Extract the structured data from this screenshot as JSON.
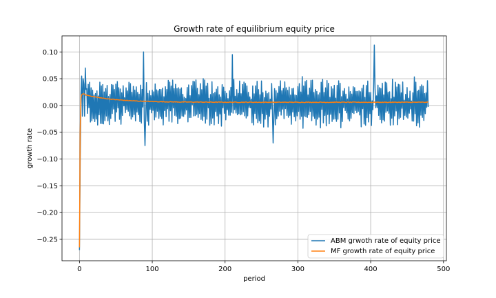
{
  "chart_data": {
    "type": "line",
    "title": "Growth rate of equilibrium equity price",
    "xlabel": "period",
    "ylabel": "growth rate",
    "xlim": [
      -24,
      504
    ],
    "ylim": [
      -0.29,
      0.13
    ],
    "xticks": [
      0,
      100,
      200,
      300,
      400,
      500
    ],
    "yticks": [
      -0.25,
      -0.2,
      -0.15,
      -0.1,
      -0.05,
      0.0,
      0.05,
      0.1
    ],
    "ytick_labels": [
      "−0.25",
      "−0.20",
      "−0.15",
      "−0.10",
      "−0.05",
      "0.00",
      "0.05",
      "0.10"
    ],
    "grid": true,
    "legend_position": "lower-right",
    "series": [
      {
        "name": "ABM grwoth rate of equity price",
        "color": "#1f77b4",
        "n": 480,
        "x_start": 0,
        "initial": [
          -0.27,
          -0.1,
          0.02,
          0.055,
          -0.02,
          0.05,
          0.04,
          -0.02,
          0.07,
          0.03
        ],
        "pattern": "noisy oscillation around 0.005, range about -0.07 to 0.11",
        "notable": [
          {
            "x": 88,
            "y": 0.1
          },
          {
            "x": 90,
            "y": -0.075
          },
          {
            "x": 210,
            "y": 0.095
          },
          {
            "x": 266,
            "y": -0.07
          },
          {
            "x": 405,
            "y": 0.113
          }
        ]
      },
      {
        "name": "MF growth rate of equity price",
        "color": "#ff7f0e",
        "n": 480,
        "x_start": 0,
        "initial": [
          -0.265,
          -0.05,
          0.015,
          0.02,
          0.021,
          0.022,
          0.022,
          0.021
        ],
        "decay": {
          "from": 0.02,
          "to": 0.006,
          "rate": 0.025
        }
      }
    ]
  }
}
